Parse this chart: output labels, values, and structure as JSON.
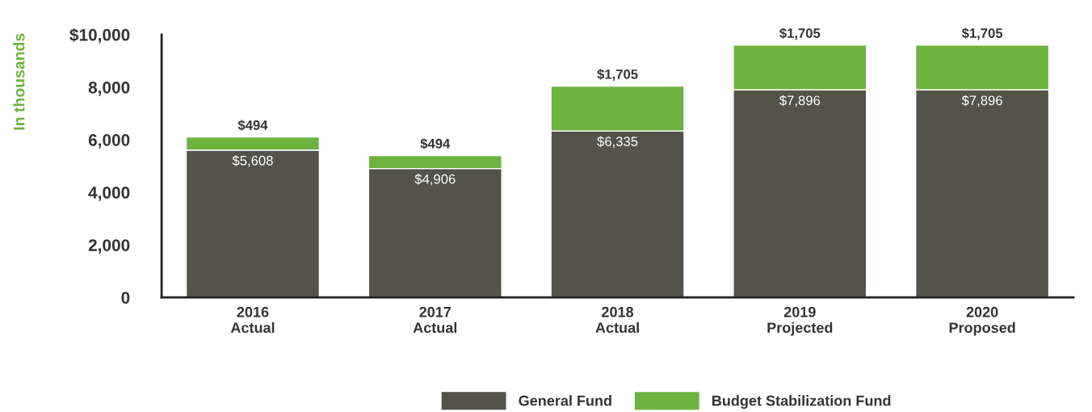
{
  "chart_data": {
    "type": "bar",
    "stacked": true,
    "ylabel": "In thousands",
    "categories": [
      "2016\nActual",
      "2017\nActual",
      "2018\nActual",
      "2019\nProjected",
      "2020\nProposed"
    ],
    "series": [
      {
        "name": "General Fund",
        "color": "#53534a",
        "values": [
          5608,
          4906,
          6335,
          7896,
          7896
        ],
        "value_labels": [
          "$5,608",
          "$4,906",
          "$6,335",
          "$7,896",
          "$7,896"
        ]
      },
      {
        "name": "Budget Stabilization Fund",
        "color": "#6db33f",
        "values": [
          494,
          494,
          1705,
          1705,
          1705
        ],
        "value_labels": [
          "$494",
          "$494",
          "$1,705",
          "$1,705",
          "$1,705"
        ]
      }
    ],
    "ylim": [
      0,
      10000
    ],
    "yticks": [
      {
        "value": 0,
        "label": "0"
      },
      {
        "value": 2000,
        "label": "2,000"
      },
      {
        "value": 4000,
        "label": "4,000"
      },
      {
        "value": 6000,
        "label": "6,000"
      },
      {
        "value": 8000,
        "label": "8,000"
      },
      {
        "value": 10000,
        "label": "$10,000"
      }
    ],
    "grid": false,
    "legend": "bottom"
  }
}
